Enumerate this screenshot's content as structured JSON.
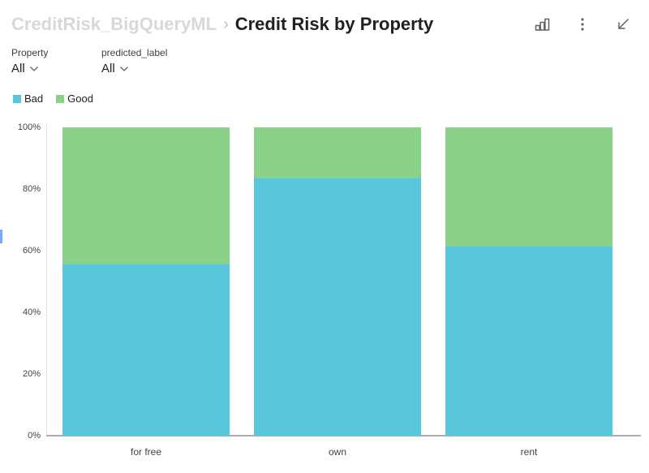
{
  "header": {
    "breadcrumb": "CreditRisk_BigQueryML",
    "separator": "›",
    "title": "Credit Risk by Property",
    "icons": [
      {
        "name": "bar-chart-icon"
      },
      {
        "name": "kebab-menu-icon"
      },
      {
        "name": "collapse-arrow-icon"
      }
    ]
  },
  "filters": [
    {
      "label": "Property",
      "value": "All"
    },
    {
      "label": "predicted_label",
      "value": "All"
    }
  ],
  "legend": [
    {
      "label": "Bad",
      "color": "#5AC6DC"
    },
    {
      "label": "Good",
      "color": "#8AD189"
    }
  ],
  "chart_data": {
    "type": "bar",
    "stacked": true,
    "percent_stacked": true,
    "title": "Credit Risk by Property",
    "xlabel": "",
    "ylabel": "",
    "categories": [
      "for free",
      "own",
      "rent"
    ],
    "series": [
      {
        "name": "Bad",
        "color": "#5AC6DC",
        "values": [
          55.6,
          83.5,
          61.2
        ]
      },
      {
        "name": "Good",
        "color": "#8AD189",
        "values": [
          44.4,
          16.5,
          38.8
        ]
      }
    ],
    "yticks": [
      "0%",
      "20%",
      "40%",
      "60%",
      "80%",
      "100%"
    ],
    "ytick_values": [
      0,
      20,
      40,
      60,
      80,
      100
    ],
    "ylim": [
      0,
      100
    ],
    "grid": false,
    "legend_position": "top-left"
  },
  "misc": {
    "edge_marker_color": "#7ba9f7"
  }
}
